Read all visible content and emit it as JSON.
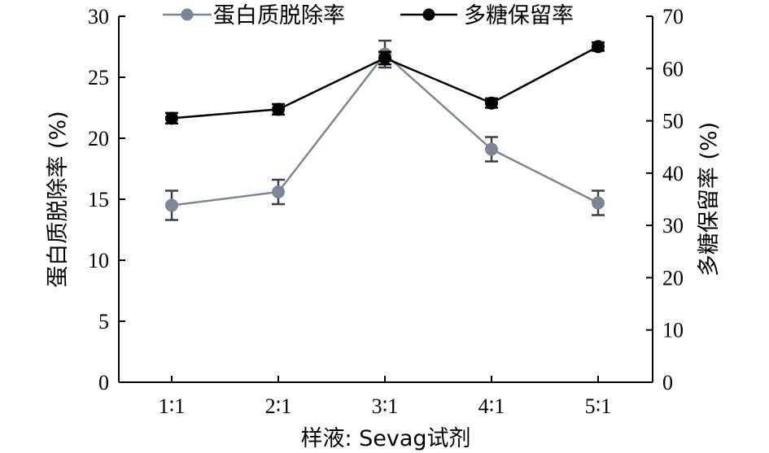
{
  "chart_data": {
    "type": "line",
    "categories": [
      "1∶1",
      "2∶1",
      "3∶1",
      "4∶1",
      "5∶1"
    ],
    "xlabel": "样液: Sevag试剂",
    "ylabel_left": "蛋白质脱除率 (%)",
    "ylabel_right": "多糖保留率 (%)",
    "ylim_left": [
      0,
      30
    ],
    "yticks_left": [
      0,
      5,
      10,
      15,
      20,
      25,
      30
    ],
    "ylim_right": [
      0,
      70
    ],
    "yticks_right": [
      0,
      10,
      20,
      30,
      40,
      50,
      60,
      70
    ],
    "grid": false,
    "legend_position": "top",
    "series": [
      {
        "name": "蛋白质脱除率",
        "axis": "left",
        "color": "#7d8597",
        "values": [
          14.5,
          15.6,
          26.9,
          19.1,
          14.7
        ],
        "errors": [
          1.2,
          1.0,
          1.1,
          1.0,
          1.0
        ]
      },
      {
        "name": "多糖保留率",
        "axis": "right",
        "color": "#000000",
        "values": [
          50.5,
          52.2,
          62.0,
          53.4,
          64.2
        ],
        "errors": [
          1.0,
          1.0,
          1.2,
          0.9,
          0.8
        ]
      }
    ]
  }
}
